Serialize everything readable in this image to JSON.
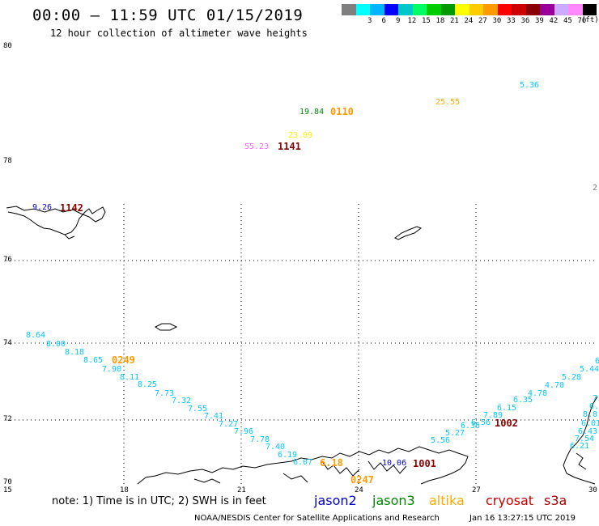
{
  "title": "00:00 – 11:59 UTC 01/15/2019",
  "subtitle": "12 hour collection of altimeter wave heights",
  "legend": {
    "unit": "(ft)",
    "items": [
      {
        "label": "",
        "color": "#7f7f7f"
      },
      {
        "label": "3",
        "color": "#00ffff"
      },
      {
        "label": "6",
        "color": "#00b4ff"
      },
      {
        "label": "9",
        "color": "#0000ff"
      },
      {
        "label": "12",
        "color": "#00c8c8"
      },
      {
        "label": "15",
        "color": "#00ff66"
      },
      {
        "label": "18",
        "color": "#00cc00"
      },
      {
        "label": "21",
        "color": "#009900"
      },
      {
        "label": "24",
        "color": "#ffff00"
      },
      {
        "label": "27",
        "color": "#ffcc00"
      },
      {
        "label": "30",
        "color": "#ff9900"
      },
      {
        "label": "33",
        "color": "#ff0000"
      },
      {
        "label": "36",
        "color": "#cc0000"
      },
      {
        "label": "39",
        "color": "#880000"
      },
      {
        "label": "42",
        "color": "#990099"
      },
      {
        "label": "45",
        "color": "#ccaaff"
      },
      {
        "label": "70",
        "color": "#ff88ff"
      },
      {
        "label": "",
        "color": "#000000"
      }
    ]
  },
  "lat_labels": [
    "80",
    "78",
    "76",
    "74",
    "72",
    "70"
  ],
  "lon_labels": [
    "15",
    "18",
    "21",
    "24",
    "27",
    "30"
  ],
  "observations": [
    {
      "text": "5.36",
      "color": "#00c8ff"
    },
    {
      "text": "25.55",
      "color": "#ffaa00"
    },
    {
      "text": "19.84",
      "color": "#008800"
    },
    {
      "text": "0110",
      "color": "#ff9900"
    },
    {
      "text": "23.09",
      "color": "#ffee00"
    },
    {
      "text": "55.23",
      "color": "#ff66ff"
    },
    {
      "text": "1141",
      "color": "#880000"
    },
    {
      "text": "2.",
      "color": "#7f7f7f"
    },
    {
      "text": "9.26",
      "color": "#0000cc"
    },
    {
      "text": "1142",
      "color": "#880000"
    },
    {
      "text": "8.64",
      "color": "#00c8ff"
    },
    {
      "text": "8.00",
      "color": "#00c8ff"
    },
    {
      "text": "8.18",
      "color": "#00c8ff"
    },
    {
      "text": "8.65",
      "color": "#00c8ff"
    },
    {
      "text": "0249",
      "color": "#ff9900"
    },
    {
      "text": "7.90",
      "color": "#00c8ff"
    },
    {
      "text": "8.11",
      "color": "#00c8ff"
    },
    {
      "text": "8.25",
      "color": "#00c8ff"
    },
    {
      "text": "7.73",
      "color": "#00c8ff"
    },
    {
      "text": "7.32",
      "color": "#00c8ff"
    },
    {
      "text": "7.55",
      "color": "#00c8ff"
    },
    {
      "text": "7.41",
      "color": "#00c8ff"
    },
    {
      "text": "7.27",
      "color": "#00c8ff"
    },
    {
      "text": "7.96",
      "color": "#00c8ff"
    },
    {
      "text": "7.78",
      "color": "#00c8ff"
    },
    {
      "text": "7.40",
      "color": "#00c8ff"
    },
    {
      "text": "6.19",
      "color": "#00c8ff"
    },
    {
      "text": "6.07",
      "color": "#00c8ff"
    },
    {
      "text": "6.18",
      "color": "#ff9900"
    },
    {
      "text": "0247",
      "color": "#ff9900"
    },
    {
      "text": "10.06",
      "color": "#0000cc"
    },
    {
      "text": "1001",
      "color": "#880000"
    },
    {
      "text": "5.56",
      "color": "#00c8ff"
    },
    {
      "text": "5.27",
      "color": "#00c8ff"
    },
    {
      "text": "6.36",
      "color": "#00c8ff"
    },
    {
      "text": "6.56",
      "color": "#00c8ff"
    },
    {
      "text": "7.89",
      "color": "#00c8ff"
    },
    {
      "text": "6.15",
      "color": "#00c8ff"
    },
    {
      "text": "1002",
      "color": "#880000"
    },
    {
      "text": "6.35",
      "color": "#00c8ff"
    },
    {
      "text": "4.78",
      "color": "#00c8ff"
    },
    {
      "text": "4.70",
      "color": "#00c8ff"
    },
    {
      "text": "5.28",
      "color": "#00c8ff"
    },
    {
      "text": "5.44",
      "color": "#00c8ff"
    },
    {
      "text": "6.",
      "color": "#00c8ff"
    },
    {
      "text": "7.",
      "color": "#00c8ff"
    },
    {
      "text": "6.",
      "color": "#00c8ff"
    },
    {
      "text": "8.8",
      "color": "#00c8ff"
    },
    {
      "text": "6.01",
      "color": "#00c8ff"
    },
    {
      "text": "6.43",
      "color": "#00c8ff"
    },
    {
      "text": "7.54",
      "color": "#00c8ff"
    },
    {
      "text": "6.21",
      "color": "#00c8ff"
    }
  ],
  "note": "note: 1) Time is in UTC; 2) SWH is in feet",
  "satellites": [
    {
      "name": "jason2",
      "color": "#0000cc"
    },
    {
      "name": "jason3",
      "color": "#008800"
    },
    {
      "name": "altika",
      "color": "#ffaa00"
    },
    {
      "name": "cryosat",
      "color": "#cc0000"
    },
    {
      "name": "s3a",
      "color": "#aa0000"
    }
  ],
  "footer": "NOAA/NESDIS Center for Satellite Applications and Research",
  "footer_time": "Jan 16 13:27:15 UTC 2019"
}
